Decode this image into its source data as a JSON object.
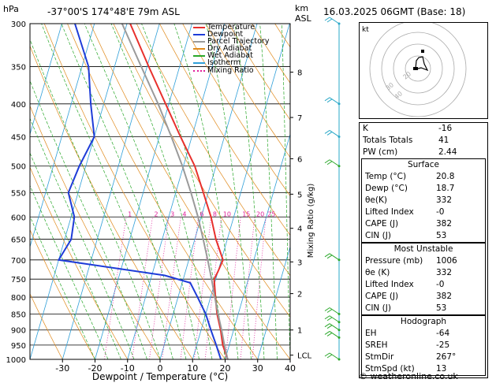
{
  "header": {
    "pressure_unit": "hPa",
    "location": "-37°00'S  174°48'E  79m  ASL",
    "height_unit_km": "km",
    "height_unit_asl": "ASL",
    "datetime": "16.03.2025  06GMT  (Base: 18)"
  },
  "legend": [
    {
      "label": "Temperature",
      "color": "#e8302c",
      "style": "solid"
    },
    {
      "label": "Dewpoint",
      "color": "#1e3cd8",
      "style": "solid"
    },
    {
      "label": "Parcel Trajectory",
      "color": "#9a9a9a",
      "style": "solid"
    },
    {
      "label": "Dry Adiabat",
      "color": "#e08a1c",
      "style": "solid"
    },
    {
      "label": "Wet Adiabat",
      "color": "#2aa82a",
      "style": "solid"
    },
    {
      "label": "Isotherm",
      "color": "#2f9fd8",
      "style": "solid"
    },
    {
      "label": "Mixing Ratio",
      "color": "#e0209a",
      "style": "dotted"
    }
  ],
  "chart_data": {
    "type": "line",
    "xlabel": "Dewpoint / Temperature (°C)",
    "ylabel": "hPa",
    "right_axis_label": "Mixing Ratio (g/kg)",
    "x_ticks": [
      -30,
      -20,
      -10,
      0,
      10,
      20,
      30,
      40
    ],
    "pressure_levels": [
      300,
      350,
      400,
      450,
      500,
      550,
      600,
      650,
      700,
      750,
      800,
      850,
      900,
      950,
      1000
    ],
    "height_ticks_km": [
      {
        "label": "8",
        "p": 357
      },
      {
        "label": "7",
        "p": 420
      },
      {
        "label": "6",
        "p": 487
      },
      {
        "label": "5",
        "p": 553
      },
      {
        "label": "4",
        "p": 625
      },
      {
        "label": "3",
        "p": 705
      },
      {
        "label": "2",
        "p": 790
      },
      {
        "label": "1",
        "p": 900
      },
      {
        "label": "LCL",
        "p": 985
      }
    ],
    "mixing_ratio_labels": [
      "1",
      "2",
      "3",
      "4",
      "6",
      "8",
      "10",
      "15",
      "20",
      "25"
    ],
    "mixing_ratio_values": [
      1,
      2,
      3,
      4,
      6,
      8,
      10,
      15,
      20,
      25
    ],
    "series": [
      {
        "name": "Temperature",
        "color": "#e8302c",
        "data": [
          [
            1000,
            20.8
          ],
          [
            950,
            18.0
          ],
          [
            900,
            16.0
          ],
          [
            850,
            13.5
          ],
          [
            800,
            11.5
          ],
          [
            750,
            9.5
          ],
          [
            730,
            10.0
          ],
          [
            700,
            10.5
          ],
          [
            650,
            6.5
          ],
          [
            600,
            3.0
          ],
          [
            550,
            -1.5
          ],
          [
            500,
            -6.5
          ],
          [
            450,
            -13.5
          ],
          [
            400,
            -21.0
          ],
          [
            350,
            -29.5
          ],
          [
            300,
            -39.0
          ]
        ]
      },
      {
        "name": "Dewpoint",
        "color": "#1e3cd8",
        "data": [
          [
            1000,
            18.7
          ],
          [
            950,
            16.0
          ],
          [
            900,
            13.0
          ],
          [
            850,
            10.0
          ],
          [
            800,
            6.0
          ],
          [
            760,
            2.5
          ],
          [
            740,
            -6.0
          ],
          [
            700,
            -40.0
          ],
          [
            650,
            -38.0
          ],
          [
            600,
            -39.0
          ],
          [
            550,
            -43.0
          ],
          [
            500,
            -42.0
          ],
          [
            450,
            -40.0
          ],
          [
            400,
            -44.0
          ],
          [
            350,
            -48.0
          ],
          [
            300,
            -56.0
          ]
        ]
      },
      {
        "name": "Parcel Trajectory",
        "color": "#9a9a9a",
        "data": [
          [
            1000,
            20.8
          ],
          [
            950,
            18.5
          ],
          [
            900,
            16.3
          ],
          [
            850,
            13.8
          ],
          [
            800,
            11.3
          ],
          [
            750,
            8.7
          ],
          [
            700,
            5.8
          ],
          [
            650,
            2.6
          ],
          [
            600,
            -1.0
          ],
          [
            550,
            -5.3
          ],
          [
            500,
            -10.3
          ],
          [
            450,
            -16.3
          ],
          [
            400,
            -23.3
          ],
          [
            350,
            -31.8
          ],
          [
            300,
            -41.5
          ]
        ]
      }
    ],
    "wind_barbs_p": [
      300,
      400,
      450,
      500,
      700,
      850,
      875,
      900,
      925,
      1000
    ]
  },
  "hodograph": {
    "label": "kt",
    "ring_labels": [
      "40",
      "30",
      "20"
    ]
  },
  "indices": {
    "k_label": "K",
    "k": "-16",
    "tt_label": "Totals Totals",
    "tt": "41",
    "pw_label": "PW (cm)",
    "pw": "2.44"
  },
  "surface": {
    "title": "Surface",
    "temp_label": "Temp (°C)",
    "temp": "20.8",
    "dewp_label": "Dewp (°C)",
    "dewp": "18.7",
    "theta_label": "θe(K)",
    "theta": "332",
    "li_label": "Lifted Index",
    "li": "-0",
    "cape_label": "CAPE (J)",
    "cape": "382",
    "cin_label": "CIN (J)",
    "cin": "53"
  },
  "most_unstable": {
    "title": "Most Unstable",
    "pres_label": "Pressure (mb)",
    "pres": "1006",
    "theta_label": "θe (K)",
    "theta": "332",
    "li_label": "Lifted Index",
    "li": "-0",
    "cape_label": "CAPE (J)",
    "cape": "382",
    "cin_label": "CIN (J)",
    "cin": "53"
  },
  "hodo_table": {
    "title": "Hodograph",
    "eh_label": "EH",
    "eh": "-64",
    "srh_label": "SREH",
    "srh": "-25",
    "dir_label": "StmDir",
    "dir": "267°",
    "spd_label": "StmSpd (kt)",
    "spd": "13"
  },
  "footer": "© weatheronline.co.uk"
}
